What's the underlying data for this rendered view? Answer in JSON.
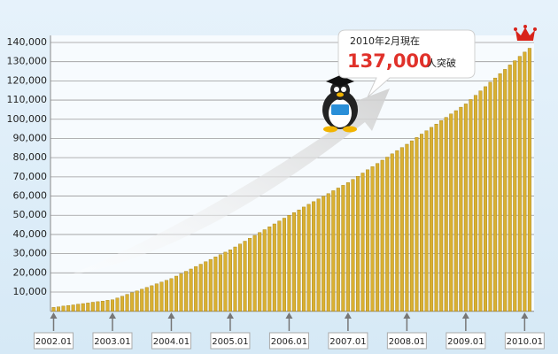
{
  "chart_data": {
    "type": "bar",
    "annotation": {
      "date": "2010年2月現在",
      "number": "137,000",
      "suffix": "人突破"
    },
    "categories": [
      "2002.01",
      null,
      null,
      null,
      null,
      null,
      null,
      null,
      null,
      null,
      null,
      null,
      "2003.01",
      null,
      null,
      null,
      null,
      null,
      null,
      null,
      null,
      null,
      null,
      null,
      "2004.01",
      null,
      null,
      null,
      null,
      null,
      null,
      null,
      null,
      null,
      null,
      null,
      "2005.01",
      null,
      null,
      null,
      null,
      null,
      null,
      null,
      null,
      null,
      null,
      null,
      "2006.01",
      null,
      null,
      null,
      null,
      null,
      null,
      null,
      null,
      null,
      null,
      null,
      "2007.01",
      null,
      null,
      null,
      null,
      null,
      null,
      null,
      null,
      null,
      null,
      null,
      "2008.01",
      null,
      null,
      null,
      null,
      null,
      null,
      null,
      null,
      null,
      null,
      null,
      "2009.01",
      null,
      null,
      null,
      null,
      null,
      null,
      null,
      null,
      null,
      null,
      null,
      "2010.01",
      null
    ],
    "values": [
      2000,
      2300,
      2700,
      3000,
      3300,
      3700,
      4000,
      4300,
      4700,
      5000,
      5300,
      5700,
      6000,
      6900,
      7800,
      8800,
      9700,
      10600,
      11500,
      12400,
      13300,
      14300,
      15200,
      16100,
      17000,
      18300,
      19500,
      20800,
      22000,
      23300,
      24500,
      25800,
      27000,
      28300,
      29500,
      30800,
      32000,
      33500,
      35000,
      36500,
      38000,
      39500,
      41000,
      42500,
      44000,
      45500,
      47000,
      48500,
      50000,
      51400,
      52800,
      54300,
      55700,
      57100,
      58500,
      59900,
      61300,
      62800,
      64200,
      65600,
      67000,
      68700,
      70300,
      72000,
      73700,
      75300,
      77000,
      78700,
      80300,
      82000,
      83700,
      85300,
      87000,
      88800,
      90500,
      92300,
      94000,
      95800,
      97500,
      99300,
      101000,
      102800,
      104500,
      106300,
      108000,
      110300,
      112500,
      114800,
      117000,
      119300,
      121500,
      123800,
      126000,
      128300,
      130500,
      132800,
      135000,
      137000
    ],
    "color": "#d9b032",
    "ylim": [
      0,
      140000
    ],
    "yticks": [
      {
        "value": 10000,
        "label": "10,000"
      },
      {
        "value": 20000,
        "label": "20,000"
      },
      {
        "value": 30000,
        "label": "30,000"
      },
      {
        "value": 40000,
        "label": "40,000"
      },
      {
        "value": 50000,
        "label": "50,000"
      },
      {
        "value": 60000,
        "label": "60,000"
      },
      {
        "value": 70000,
        "label": "70,000"
      },
      {
        "value": 80000,
        "label": "80,000"
      },
      {
        "value": 90000,
        "label": "90,000"
      },
      {
        "value": 100000,
        "label": "100,000"
      },
      {
        "value": 110000,
        "label": "110,000"
      },
      {
        "value": 120000,
        "label": "120,000"
      },
      {
        "value": 130000,
        "label": "130,000"
      },
      {
        "value": 140000,
        "label": "140,000"
      }
    ],
    "grid": true
  }
}
